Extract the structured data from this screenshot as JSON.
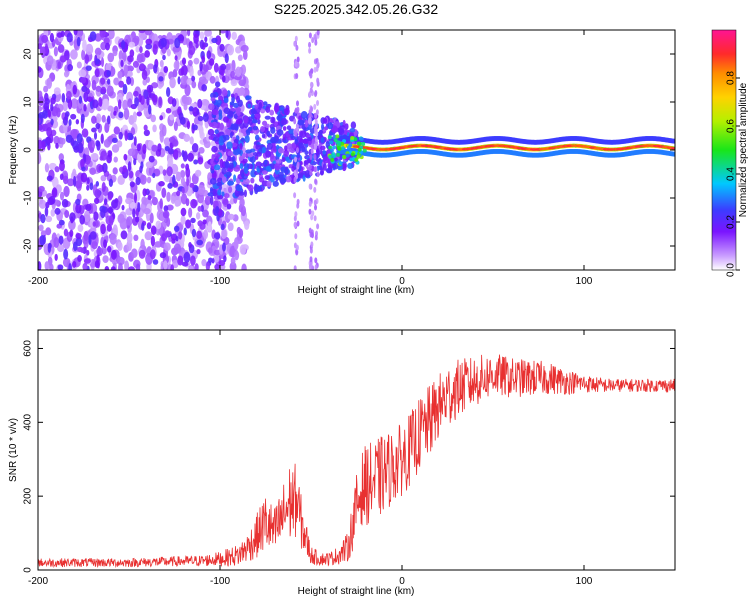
{
  "title": "S225.2025.342.05.26.G32",
  "colors": {
    "snr_line": "#e83030",
    "frame": "#000000",
    "background": "#ffffff"
  },
  "chart_data": [
    {
      "type": "heatmap",
      "title": "S225.2025.342.05.26.G32",
      "xlabel": "Height of straight line (km)",
      "ylabel": "Frequency (Hz)",
      "xlim": [
        -200,
        150
      ],
      "ylim": [
        -25,
        25
      ],
      "x_ticks": [
        -200,
        -100,
        0,
        100
      ],
      "x_tick_labels": [
        "-200",
        "-100",
        "0",
        "100"
      ],
      "y_ticks": [
        -20,
        -10,
        0,
        10,
        20
      ],
      "y_tick_labels": [
        "-20",
        "-10",
        "0",
        "10",
        "20"
      ],
      "colorbar": {
        "label": "Normalized spectral amplitude",
        "range": [
          0,
          1
        ],
        "ticks": [
          0.0,
          0.2,
          0.4,
          0.6,
          0.8
        ],
        "tick_labels": [
          "0.0",
          "0.2",
          "0.4",
          "0.6",
          "0.8"
        ],
        "colormap": "rainbow (white-violet-blue-cyan-green-yellow-orange-red-magenta)"
      },
      "features": [
        {
          "description": "noise scatter",
          "x_range": [
            -200,
            -100
          ],
          "freq_range": [
            -25,
            25
          ],
          "amplitude": 0.05
        },
        {
          "description": "converging noise",
          "x_range": [
            -100,
            -30
          ],
          "freq_range": [
            -10,
            10
          ],
          "amplitude": 0.15
        },
        {
          "description": "strong peak near 0 Hz",
          "x_range": [
            -30,
            150
          ],
          "freq_center": 0.5,
          "amplitude": 0.9
        }
      ],
      "grid": false
    },
    {
      "type": "line",
      "xlabel": "Height of straight line (km)",
      "ylabel": "SNR (10 * v/v)",
      "xlim": [
        -200,
        150
      ],
      "ylim": [
        0,
        650
      ],
      "x_ticks": [
        -200,
        -100,
        0,
        100
      ],
      "x_tick_labels": [
        "-200",
        "-100",
        "0",
        "100"
      ],
      "y_ticks": [
        0,
        200,
        400,
        600
      ],
      "y_tick_labels": [
        "0",
        "200",
        "400",
        "600"
      ],
      "grid": false,
      "series": [
        {
          "x": [
            -200,
            -150,
            -110,
            -100,
            -90,
            -85,
            -80,
            -75,
            -70,
            -65,
            -62,
            -58,
            -55,
            -50,
            -45,
            -40,
            -35,
            -30,
            -28,
            -25,
            -22,
            -20,
            -15,
            -10,
            -5,
            0,
            5,
            10,
            15,
            20,
            25,
            30,
            40,
            50,
            60,
            70,
            80,
            90,
            100,
            110,
            120,
            130,
            140,
            150
          ],
          "y": [
            20,
            20,
            25,
            30,
            40,
            60,
            90,
            130,
            100,
            150,
            180,
            190,
            120,
            40,
            30,
            30,
            40,
            60,
            100,
            170,
            220,
            230,
            240,
            260,
            280,
            300,
            330,
            370,
            400,
            440,
            470,
            490,
            510,
            530,
            520,
            520,
            520,
            510,
            505,
            500,
            500,
            500,
            500,
            500
          ],
          "spread": [
            12,
            12,
            15,
            20,
            30,
            40,
            60,
            80,
            70,
            90,
            110,
            100,
            70,
            25,
            18,
            18,
            25,
            40,
            60,
            90,
            100,
            110,
            110,
            110,
            100,
            100,
            100,
            100,
            100,
            90,
            90,
            80,
            70,
            60,
            55,
            50,
            45,
            35,
            25,
            20,
            18,
            18,
            18,
            18
          ]
        }
      ]
    }
  ]
}
